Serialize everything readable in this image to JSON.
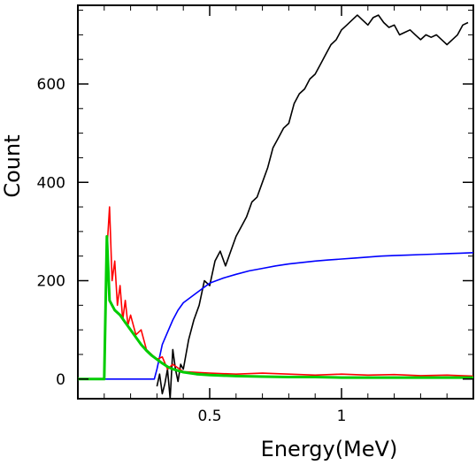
{
  "chart_data": {
    "type": "line",
    "title": "",
    "xlabel": "Energy(MeV)",
    "ylabel": "Count",
    "xlim": [
      0.0,
      1.5
    ],
    "ylim": [
      -40,
      760
    ],
    "xticks": [
      {
        "value": 0.5,
        "label": "0.5"
      },
      {
        "value": 1.0,
        "label": "1"
      }
    ],
    "yticks": [
      {
        "value": 0,
        "label": "0"
      },
      {
        "value": 200,
        "label": "200"
      },
      {
        "value": 400,
        "label": "400"
      },
      {
        "value": 600,
        "label": "600"
      }
    ],
    "grid": false,
    "legend": "none",
    "series": [
      {
        "color": "#000000",
        "x": [
          0.3,
          0.31,
          0.32,
          0.33,
          0.34,
          0.35,
          0.36,
          0.37,
          0.38,
          0.39,
          0.4,
          0.42,
          0.44,
          0.46,
          0.48,
          0.5,
          0.52,
          0.54,
          0.56,
          0.58,
          0.6,
          0.62,
          0.64,
          0.66,
          0.68,
          0.7,
          0.72,
          0.74,
          0.76,
          0.78,
          0.8,
          0.82,
          0.84,
          0.86,
          0.88,
          0.9,
          0.92,
          0.94,
          0.96,
          0.98,
          1.0,
          1.02,
          1.04,
          1.06,
          1.08,
          1.1,
          1.12,
          1.14,
          1.16,
          1.18,
          1.2,
          1.22,
          1.24,
          1.26,
          1.28,
          1.3,
          1.32,
          1.34,
          1.36,
          1.38,
          1.4,
          1.42,
          1.44,
          1.46,
          1.48
        ],
        "values": [
          -15,
          10,
          -30,
          -10,
          20,
          -40,
          60,
          20,
          -5,
          30,
          20,
          80,
          120,
          150,
          200,
          190,
          240,
          260,
          230,
          260,
          290,
          310,
          330,
          360,
          370,
          400,
          430,
          470,
          490,
          510,
          520,
          560,
          580,
          590,
          610,
          620,
          640,
          660,
          680,
          690,
          710,
          720,
          730,
          740,
          730,
          720,
          735,
          740,
          725,
          715,
          720,
          700,
          705,
          710,
          700,
          690,
          700,
          695,
          700,
          690,
          680,
          690,
          700,
          720,
          725
        ]
      },
      {
        "color": "#0000ff",
        "x": [
          0.0,
          0.29,
          0.3,
          0.32,
          0.34,
          0.36,
          0.38,
          0.4,
          0.45,
          0.5,
          0.55,
          0.6,
          0.65,
          0.7,
          0.75,
          0.8,
          0.85,
          0.9,
          0.95,
          1.0,
          1.05,
          1.1,
          1.15,
          1.2,
          1.25,
          1.3,
          1.35,
          1.4,
          1.45,
          1.5
        ],
        "values": [
          0,
          0,
          20,
          70,
          95,
          120,
          140,
          155,
          175,
          195,
          205,
          213,
          220,
          225,
          230,
          234,
          237,
          240,
          242,
          244,
          246,
          248,
          250,
          251,
          252,
          253,
          254,
          255,
          256,
          257
        ]
      },
      {
        "color": "#ff0000",
        "x": [
          0.0,
          0.1,
          0.11,
          0.12,
          0.13,
          0.14,
          0.15,
          0.16,
          0.17,
          0.18,
          0.19,
          0.2,
          0.22,
          0.24,
          0.26,
          0.28,
          0.3,
          0.32,
          0.34,
          0.36,
          0.4,
          0.5,
          0.6,
          0.7,
          0.8,
          0.9,
          1.0,
          1.1,
          1.2,
          1.3,
          1.4,
          1.5
        ],
        "values": [
          0,
          0,
          260,
          350,
          200,
          240,
          150,
          190,
          120,
          160,
          110,
          130,
          90,
          100,
          60,
          50,
          40,
          45,
          20,
          30,
          15,
          12,
          10,
          12,
          10,
          8,
          10,
          8,
          9,
          7,
          8,
          6
        ]
      },
      {
        "color": "#00cc00",
        "x": [
          0.0,
          0.1,
          0.11,
          0.12,
          0.13,
          0.14,
          0.16,
          0.18,
          0.2,
          0.22,
          0.24,
          0.26,
          0.28,
          0.3,
          0.32,
          0.34,
          0.36,
          0.4,
          0.45,
          0.5,
          0.6,
          0.7,
          0.8,
          0.9,
          1.0,
          1.2,
          1.4,
          1.5
        ],
        "values": [
          0,
          0,
          290,
          160,
          150,
          140,
          130,
          115,
          100,
          85,
          70,
          58,
          48,
          40,
          32,
          25,
          20,
          14,
          10,
          8,
          6,
          5,
          4,
          4,
          3,
          3,
          3,
          3
        ]
      }
    ]
  }
}
